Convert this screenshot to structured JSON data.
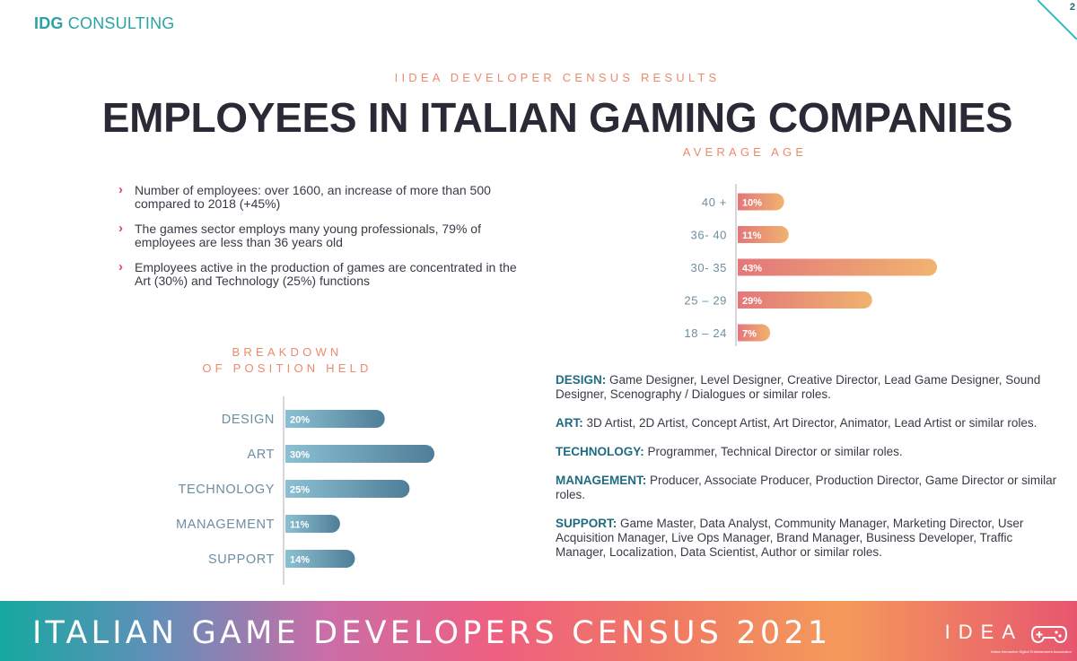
{
  "header": {
    "logo_bold": "IDG",
    "logo_rest": " CONSULTING",
    "page_number": "2"
  },
  "kicker": "IIDEA DEVELOPER CENSUS RESULTS",
  "title": "EMPLOYEES IN ITALIAN GAMING COMPANIES",
  "bullets": [
    "Number of employees: over 1600, an increase of more than 500 compared to 2018 (+45%)",
    "The games sector employs many young professionals, 79% of employees are less than 36 years old",
    "Employees active in the production of games are concentrated in the Art (30%) and Technology (25%) functions"
  ],
  "colors": {
    "accent_orange": "#ec8a6c",
    "bullet_arrow": "#e0456b",
    "age_bar_start": "#e3777a",
    "age_bar_end": "#f0b36f",
    "position_bar_start": "#8bc0d2",
    "position_bar_end": "#4f7e98",
    "term_blue": "#1f6b82"
  },
  "chart_data": [
    {
      "type": "bar",
      "orientation": "horizontal",
      "title": "AVERAGE AGE",
      "categories": [
        "40 +",
        "36- 40",
        "30- 35",
        "25 – 29",
        "18 – 24"
      ],
      "values": [
        10,
        11,
        43,
        29,
        7
      ],
      "labels": [
        "10%",
        "11%",
        "43%",
        "29%",
        "7%"
      ],
      "unit": "%"
    },
    {
      "type": "bar",
      "orientation": "horizontal",
      "title": "BREAKDOWN OF POSITION HELD",
      "title_lines": [
        "BREAKDOWN",
        "OF POSITION HELD"
      ],
      "categories": [
        "DESIGN",
        "ART",
        "TECHNOLOGY",
        "MANAGEMENT",
        "SUPPORT"
      ],
      "values": [
        20,
        30,
        25,
        11,
        14
      ],
      "labels": [
        "20%",
        "30%",
        "25%",
        "11%",
        "14%"
      ],
      "unit": "%"
    }
  ],
  "definitions": [
    {
      "term": "DESIGN:",
      "text": " Game Designer, Level Designer, Creative Director, Lead Game Designer, Sound Designer, Scenography / Dialogues or similar roles."
    },
    {
      "term": "ART:",
      "text": " 3D Artist, 2D Artist, Concept Artist, Art Director, Animator, Lead Artist or similar roles."
    },
    {
      "term": "TECHNOLOGY:",
      "text": " Programmer, Technical Director or similar roles."
    },
    {
      "term": "MANAGEMENT:",
      "text": " Producer, Associate Producer, Production Director, Game Director or similar roles."
    },
    {
      "term": "SUPPORT:",
      "text": " Game Master, Data Analyst, Community Manager, Marketing Director, User Acquisition Manager, Live Ops Manager, Brand Manager, Business Developer, Traffic Manager, Localization, Data Scientist, Author or similar roles."
    }
  ],
  "banner": {
    "text": "ITALIAN GAME DEVELOPERS CENSUS 2021",
    "logo_text": "IDEA",
    "logo_small": "Italian Interactive Digital Entertainment Association"
  }
}
